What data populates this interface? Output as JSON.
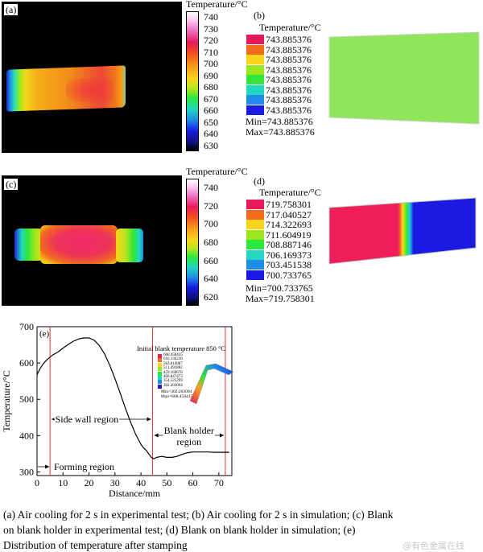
{
  "panel_a": {
    "label": "(a)",
    "colorbar": {
      "title": "Temperature/°C",
      "ticks": [
        "740",
        "730",
        "720",
        "710",
        "700",
        "690",
        "680",
        "670",
        "660",
        "650",
        "640",
        "630"
      ]
    }
  },
  "panel_b": {
    "label": "(b)",
    "legend_title": "Temperature/°C",
    "values": [
      "743.885376",
      "743.885376",
      "743.885376",
      "743.885376",
      "743.885376",
      "743.885376",
      "743.885376",
      "743.885376"
    ],
    "swatch_colors": [
      "#e8195a",
      "#f26b1c",
      "#f7d51a",
      "#9be61d",
      "#2ee63c",
      "#22d6c0",
      "#1f8ce8",
      "#1a1ae0"
    ],
    "min_text": "Min=743.885376",
    "max_text": "Max=743.885376",
    "plate_color": "#8fe65a"
  },
  "panel_c": {
    "label": "(c)",
    "colorbar": {
      "title": "Temperature/°C",
      "ticks": [
        "740",
        "720",
        "700",
        "680",
        "660",
        "640",
        "620"
      ]
    }
  },
  "panel_d": {
    "label": "(d)",
    "legend_title": "Temperature/°C",
    "values": [
      "719.758301",
      "717.040527",
      "714.322693",
      "711.604919",
      "708.887146",
      "706.169373",
      "703.451538",
      "700.733765"
    ],
    "swatch_colors": [
      "#e8195a",
      "#f26b1c",
      "#f7d51a",
      "#9be61d",
      "#2ee63c",
      "#22d6c0",
      "#1f8ce8",
      "#1a1ae0"
    ],
    "min_text": "Min=700.733765",
    "max_text": "Max=719.758301"
  },
  "panel_e": {
    "label": "(e)",
    "inset_title": "Initial blank temperature 850 °C",
    "inset_values": [
      "668.458435",
      "616.136230",
      "563.814087",
      "511.491882",
      "459.169678",
      "406.847473",
      "354.525299",
      "302.203094"
    ],
    "inset_min": "Min=302.203094",
    "inset_max": "Max=668.458435",
    "annotations": {
      "side_wall": "Side wall region",
      "blank_holder_1": "Blank holder",
      "blank_holder_2": "region",
      "forming": "Forming region"
    }
  },
  "chart_data": {
    "type": "line",
    "xlabel": "Distance/mm",
    "ylabel": "Temperature/°C",
    "xlim": [
      0,
      75
    ],
    "ylim": [
      290,
      700
    ],
    "xticks": [
      0,
      10,
      20,
      30,
      40,
      50,
      60,
      70
    ],
    "yticks": [
      300,
      400,
      500,
      600,
      700
    ],
    "vlines": [
      5,
      44.5,
      72.5
    ],
    "series": [
      {
        "color": "#000000",
        "x": [
          0,
          1,
          2,
          3,
          4,
          5,
          6,
          8,
          10,
          12,
          14,
          16,
          18,
          20,
          22,
          24,
          26,
          28,
          30,
          32,
          34,
          36,
          38,
          40,
          41,
          42,
          43,
          44,
          45,
          46,
          48,
          50,
          52,
          54,
          56,
          58,
          60,
          62,
          64,
          66,
          68,
          70,
          72,
          74
        ],
        "y": [
          568,
          582,
          594,
          603,
          610,
          616,
          622,
          630,
          641,
          651,
          660,
          666,
          669,
          669,
          663,
          648,
          625,
          594,
          557,
          517,
          476,
          437,
          403,
          376,
          366,
          360,
          350,
          340,
          336,
          340,
          343,
          340,
          340,
          343,
          349,
          353,
          355,
          355,
          355,
          355,
          354,
          354,
          354,
          354
        ]
      }
    ]
  },
  "caption": {
    "line1": "(a) Air cooling for 2 s in experimental test; (b) Air cooling for 2 s in simulation; (c)  Blank",
    "line2": "on blank  holder  in experimental  test;  (d)  Blank  on  blank holder  in  simulation; (e)",
    "line3": "Distribution  of temperature after stamping"
  },
  "watermark": "@有色金属在线"
}
